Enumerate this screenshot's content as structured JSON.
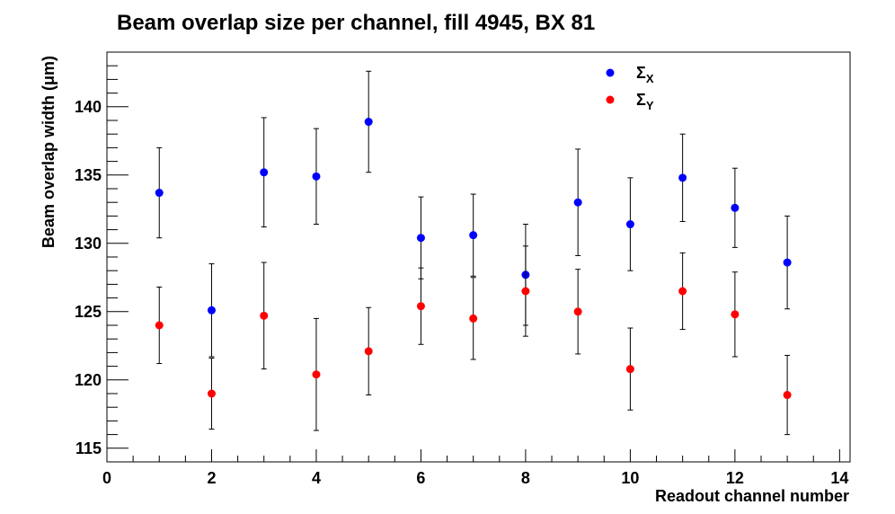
{
  "chart_data": {
    "type": "scatter",
    "title": "Beam overlap size per channel, fill 4945, BX 81",
    "xlabel": "Readout channel number",
    "ylabel": "Beam overlap width (μm)",
    "xlim": [
      0,
      14.2
    ],
    "ylim": [
      114,
      144
    ],
    "xticks": [
      0,
      2,
      4,
      6,
      8,
      10,
      12,
      14
    ],
    "yticks": [
      115,
      120,
      125,
      130,
      135,
      140
    ],
    "grid": false,
    "legend_position": "top-right",
    "series": [
      {
        "name": "Σ",
        "subscript": "X",
        "color": "#0000ff",
        "x": [
          1,
          2,
          3,
          4,
          5,
          6,
          7,
          8,
          9,
          10,
          11,
          12,
          13
        ],
        "y": [
          133.7,
          125.1,
          135.2,
          134.9,
          138.9,
          130.4,
          130.6,
          127.7,
          133.0,
          131.4,
          134.8,
          132.6,
          128.6
        ],
        "err": [
          3.3,
          3.4,
          4.0,
          3.5,
          3.7,
          3.0,
          3.0,
          3.7,
          3.9,
          3.4,
          3.2,
          2.9,
          3.4
        ]
      },
      {
        "name": "Σ",
        "subscript": "Y",
        "color": "#ff0000",
        "x": [
          1,
          2,
          3,
          4,
          5,
          6,
          7,
          8,
          9,
          10,
          11,
          12,
          13
        ],
        "y": [
          124.0,
          119.0,
          124.7,
          120.4,
          122.1,
          125.4,
          124.5,
          126.5,
          125.0,
          120.8,
          126.5,
          124.8,
          118.9
        ],
        "err": [
          2.8,
          2.6,
          3.9,
          4.1,
          3.2,
          2.8,
          3.0,
          3.3,
          3.1,
          3.0,
          2.8,
          3.1,
          2.9
        ]
      }
    ]
  }
}
